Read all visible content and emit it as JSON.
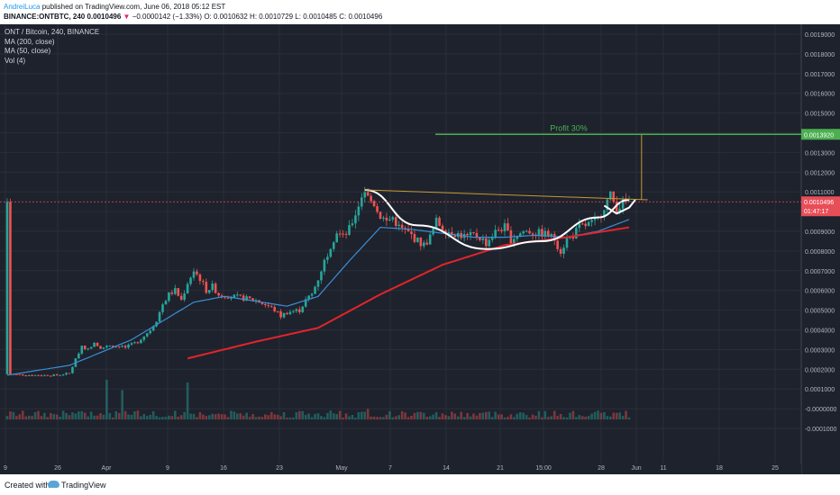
{
  "header": {
    "author": "AndreiLuca",
    "published": "published on TradingView.com, June 06, 2018 05:12 EST",
    "symbol": "BINANCE:ONTBTC, 240",
    "last": "0.0010496",
    "change_arrow": "▼",
    "change": "−0.0000142 (−1.33%)",
    "ohlc": "O: 0.0010632 H: 0.0010729 L: 0.0010485 C: 0.0010496"
  },
  "legend": {
    "title": "ONT / Bitcoin, 240, BINANCE",
    "ma200": "MA (200, close)",
    "ma50": "MA (50, close)",
    "vol": "Vol (4)"
  },
  "annotation": {
    "profit_label": "Profit 30%",
    "target_price": "0.0013920",
    "current_price": "0.0010496",
    "countdown": "01:47:17"
  },
  "footer": {
    "created": "Created with",
    "brand": "TradingView"
  },
  "colors": {
    "background": "#1e222d",
    "grid": "#2a2e39",
    "up": "#26a69a",
    "down": "#ef5350",
    "ma200": "#e3242b",
    "ma50": "#3a8fd6",
    "profit_line": "#4caf50",
    "cup": "#ffffff",
    "trend": "#c79a33",
    "price_badge": "#e84e58"
  },
  "chart_data": {
    "type": "candlestick",
    "title": "ONT / Bitcoin, 240, BINANCE",
    "y_tick_labels": [
      "0.0019000",
      "0.0018000",
      "0.0017000",
      "0.0016000",
      "0.0015000",
      "0.0014000",
      "0.0013000",
      "0.0012000",
      "0.0011000",
      "0.0010000",
      "0.0009000",
      "0.0008000",
      "0.0007000",
      "0.0006000",
      "0.0005000",
      "0.0004000",
      "0.0003000",
      "0.0002000",
      "0.0001000",
      "-0.0000000",
      "-0.0001000"
    ],
    "x_tick_labels": [
      "9",
      "26",
      "Apr",
      "9",
      "16",
      "23",
      "May",
      "7",
      "14",
      "21",
      "15:00",
      "28",
      "Jun",
      "11",
      "18",
      "25"
    ],
    "ylim": [
      -0.0001,
      0.00196
    ],
    "grid": true,
    "price_path": [
      [
        0.5,
        0.000175
      ],
      [
        4,
        0.00017
      ],
      [
        8,
        0.00017
      ],
      [
        10,
        0.00018
      ],
      [
        11,
        0.00025
      ],
      [
        12,
        0.00032
      ],
      [
        13,
        0.0003
      ],
      [
        14,
        0.00034
      ],
      [
        15,
        0.00031
      ],
      [
        17,
        0.00032
      ],
      [
        19,
        0.00031
      ],
      [
        21,
        0.00034
      ],
      [
        23,
        0.0004
      ],
      [
        24,
        0.00045
      ],
      [
        25,
        0.00053
      ],
      [
        26,
        0.00058
      ],
      [
        27,
        0.0006
      ],
      [
        28,
        0.00055
      ],
      [
        29,
        0.00064
      ],
      [
        30,
        0.0007
      ],
      [
        31,
        0.00066
      ],
      [
        32,
        0.0006
      ],
      [
        33,
        0.00062
      ],
      [
        34,
        0.00058
      ],
      [
        36,
        0.00057
      ],
      [
        38,
        0.00056
      ],
      [
        40,
        0.00055
      ],
      [
        42,
        0.00052
      ],
      [
        43,
        0.0005
      ],
      [
        44,
        0.00047
      ],
      [
        45,
        0.00049
      ],
      [
        47,
        0.0005
      ],
      [
        48,
        0.00055
      ],
      [
        49,
        0.00058
      ],
      [
        50,
        0.00066
      ],
      [
        51,
        0.00075
      ],
      [
        52,
        0.00083
      ],
      [
        53,
        0.0009
      ],
      [
        54,
        0.00087
      ],
      [
        55,
        0.00091
      ],
      [
        56,
        0.00099
      ],
      [
        57,
        0.00108
      ],
      [
        57.5,
        0.00111
      ],
      [
        58,
        0.00107
      ],
      [
        59,
        0.00104
      ],
      [
        60,
        0.00098
      ],
      [
        61,
        0.00095
      ],
      [
        62,
        0.00097
      ],
      [
        63,
        0.00092
      ],
      [
        64,
        0.0009
      ],
      [
        65,
        0.00088
      ],
      [
        66,
        0.00085
      ],
      [
        67,
        0.00083
      ],
      [
        68,
        0.00087
      ],
      [
        69,
        0.00095
      ],
      [
        70,
        0.00092
      ],
      [
        71,
        0.0009
      ],
      [
        72,
        0.00089
      ],
      [
        73,
        0.00088
      ],
      [
        74,
        0.00087
      ],
      [
        75,
        0.00088
      ],
      [
        76,
        0.00087
      ],
      [
        77,
        0.00084
      ],
      [
        78,
        0.00088
      ],
      [
        79,
        0.00091
      ],
      [
        80,
        0.00092
      ],
      [
        81,
        0.00086
      ],
      [
        82,
        0.00088
      ],
      [
        83,
        0.0009
      ],
      [
        84,
        0.0009
      ],
      [
        85,
        0.00089
      ],
      [
        86,
        0.00089
      ],
      [
        87,
        0.00088
      ],
      [
        88,
        0.00086
      ],
      [
        89,
        0.0008
      ],
      [
        90,
        0.00086
      ],
      [
        91,
        0.00088
      ],
      [
        92,
        0.00092
      ],
      [
        93,
        0.00093
      ],
      [
        94,
        0.00094
      ],
      [
        95,
        0.00096
      ],
      [
        96,
        0.00103
      ],
      [
        97,
        0.00108
      ],
      [
        98,
        0.00102
      ],
      [
        99,
        0.00104
      ],
      [
        100,
        0.00105
      ]
    ],
    "ma200_path": [
      [
        29,
        0.000255
      ],
      [
        40,
        0.00034
      ],
      [
        50,
        0.00041
      ],
      [
        60,
        0.00058
      ],
      [
        70,
        0.00073
      ],
      [
        80,
        0.00083
      ],
      [
        90,
        0.00087
      ],
      [
        100,
        0.00092
      ]
    ],
    "ma50_path": [
      [
        0,
        0.00017
      ],
      [
        10,
        0.00022
      ],
      [
        20,
        0.00035
      ],
      [
        30,
        0.00054
      ],
      [
        35,
        0.00057
      ],
      [
        45,
        0.00052
      ],
      [
        50,
        0.00057
      ],
      [
        55,
        0.00075
      ],
      [
        60,
        0.00092
      ],
      [
        65,
        0.00091
      ],
      [
        70,
        0.00089
      ],
      [
        75,
        0.00087
      ],
      [
        80,
        0.00087
      ],
      [
        85,
        0.00088
      ],
      [
        90,
        0.00087
      ],
      [
        95,
        0.0009
      ],
      [
        100,
        0.00096
      ]
    ],
    "cup_path": [
      [
        57.5,
        0.00111
      ],
      [
        66,
        0.00093
      ],
      [
        77,
        0.00081
      ],
      [
        86,
        0.00085
      ],
      [
        95,
        0.00097
      ],
      [
        100,
        0.00106
      ]
    ],
    "handle_path": [
      [
        96,
        0.00103
      ],
      [
        98,
        0.00099
      ],
      [
        100,
        0.00102
      ],
      [
        101,
        0.00106
      ]
    ],
    "resistance_line": [
      [
        57.5,
        0.00111
      ],
      [
        103,
        0.00106
      ]
    ],
    "profit_target": 0.001392,
    "current_price": 0.0010496,
    "volume_max": 8e-05
  }
}
